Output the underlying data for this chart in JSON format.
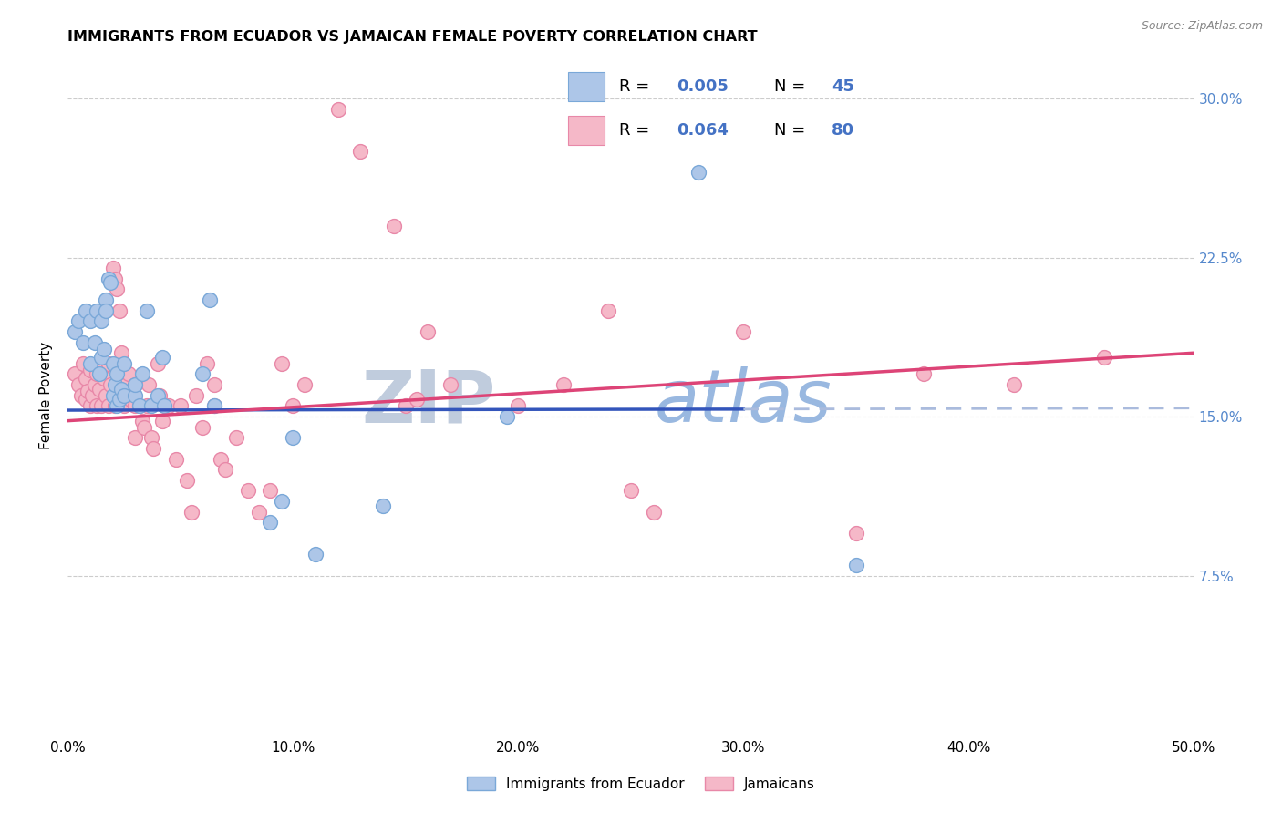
{
  "title": "IMMIGRANTS FROM ECUADOR VS JAMAICAN FEMALE POVERTY CORRELATION CHART",
  "source": "Source: ZipAtlas.com",
  "ylabel": "Female Poverty",
  "right_yticks": [
    "30.0%",
    "22.5%",
    "15.0%",
    "7.5%"
  ],
  "right_ytick_vals": [
    0.3,
    0.225,
    0.15,
    0.075
  ],
  "blue_scatter": [
    [
      0.003,
      0.19
    ],
    [
      0.005,
      0.195
    ],
    [
      0.007,
      0.185
    ],
    [
      0.008,
      0.2
    ],
    [
      0.01,
      0.175
    ],
    [
      0.01,
      0.195
    ],
    [
      0.012,
      0.185
    ],
    [
      0.013,
      0.2
    ],
    [
      0.014,
      0.17
    ],
    [
      0.015,
      0.178
    ],
    [
      0.015,
      0.195
    ],
    [
      0.016,
      0.182
    ],
    [
      0.017,
      0.205
    ],
    [
      0.017,
      0.2
    ],
    [
      0.018,
      0.215
    ],
    [
      0.019,
      0.213
    ],
    [
      0.02,
      0.16
    ],
    [
      0.02,
      0.175
    ],
    [
      0.021,
      0.165
    ],
    [
      0.022,
      0.155
    ],
    [
      0.022,
      0.17
    ],
    [
      0.023,
      0.158
    ],
    [
      0.024,
      0.163
    ],
    [
      0.025,
      0.175
    ],
    [
      0.025,
      0.16
    ],
    [
      0.03,
      0.16
    ],
    [
      0.03,
      0.165
    ],
    [
      0.032,
      0.155
    ],
    [
      0.033,
      0.17
    ],
    [
      0.035,
      0.2
    ],
    [
      0.037,
      0.155
    ],
    [
      0.04,
      0.16
    ],
    [
      0.042,
      0.178
    ],
    [
      0.043,
      0.155
    ],
    [
      0.06,
      0.17
    ],
    [
      0.063,
      0.205
    ],
    [
      0.065,
      0.155
    ],
    [
      0.09,
      0.1
    ],
    [
      0.095,
      0.11
    ],
    [
      0.1,
      0.14
    ],
    [
      0.11,
      0.085
    ],
    [
      0.14,
      0.108
    ],
    [
      0.195,
      0.15
    ],
    [
      0.28,
      0.265
    ],
    [
      0.35,
      0.08
    ]
  ],
  "pink_scatter": [
    [
      0.003,
      0.17
    ],
    [
      0.005,
      0.165
    ],
    [
      0.006,
      0.16
    ],
    [
      0.007,
      0.175
    ],
    [
      0.008,
      0.168
    ],
    [
      0.008,
      0.158
    ],
    [
      0.009,
      0.162
    ],
    [
      0.01,
      0.172
    ],
    [
      0.01,
      0.155
    ],
    [
      0.011,
      0.16
    ],
    [
      0.012,
      0.165
    ],
    [
      0.013,
      0.155
    ],
    [
      0.013,
      0.17
    ],
    [
      0.014,
      0.163
    ],
    [
      0.015,
      0.175
    ],
    [
      0.015,
      0.155
    ],
    [
      0.016,
      0.168
    ],
    [
      0.017,
      0.16
    ],
    [
      0.018,
      0.175
    ],
    [
      0.018,
      0.155
    ],
    [
      0.019,
      0.165
    ],
    [
      0.02,
      0.22
    ],
    [
      0.021,
      0.215
    ],
    [
      0.021,
      0.155
    ],
    [
      0.022,
      0.21
    ],
    [
      0.023,
      0.2
    ],
    [
      0.024,
      0.18
    ],
    [
      0.025,
      0.155
    ],
    [
      0.026,
      0.165
    ],
    [
      0.027,
      0.17
    ],
    [
      0.028,
      0.158
    ],
    [
      0.03,
      0.155
    ],
    [
      0.03,
      0.165
    ],
    [
      0.03,
      0.14
    ],
    [
      0.032,
      0.155
    ],
    [
      0.033,
      0.148
    ],
    [
      0.034,
      0.145
    ],
    [
      0.035,
      0.155
    ],
    [
      0.036,
      0.165
    ],
    [
      0.037,
      0.14
    ],
    [
      0.038,
      0.135
    ],
    [
      0.04,
      0.175
    ],
    [
      0.041,
      0.16
    ],
    [
      0.042,
      0.148
    ],
    [
      0.045,
      0.155
    ],
    [
      0.048,
      0.13
    ],
    [
      0.05,
      0.155
    ],
    [
      0.053,
      0.12
    ],
    [
      0.055,
      0.105
    ],
    [
      0.057,
      0.16
    ],
    [
      0.06,
      0.145
    ],
    [
      0.062,
      0.175
    ],
    [
      0.065,
      0.165
    ],
    [
      0.065,
      0.155
    ],
    [
      0.068,
      0.13
    ],
    [
      0.07,
      0.125
    ],
    [
      0.075,
      0.14
    ],
    [
      0.08,
      0.115
    ],
    [
      0.085,
      0.105
    ],
    [
      0.09,
      0.115
    ],
    [
      0.095,
      0.175
    ],
    [
      0.1,
      0.155
    ],
    [
      0.105,
      0.165
    ],
    [
      0.12,
      0.295
    ],
    [
      0.13,
      0.275
    ],
    [
      0.145,
      0.24
    ],
    [
      0.15,
      0.155
    ],
    [
      0.155,
      0.158
    ],
    [
      0.16,
      0.19
    ],
    [
      0.17,
      0.165
    ],
    [
      0.2,
      0.155
    ],
    [
      0.22,
      0.165
    ],
    [
      0.24,
      0.2
    ],
    [
      0.25,
      0.115
    ],
    [
      0.26,
      0.105
    ],
    [
      0.3,
      0.19
    ],
    [
      0.35,
      0.095
    ],
    [
      0.38,
      0.17
    ],
    [
      0.42,
      0.165
    ],
    [
      0.46,
      0.178
    ]
  ],
  "blue_line_solid": {
    "x": [
      0.0,
      0.3
    ],
    "y": [
      0.153,
      0.1535
    ]
  },
  "blue_line_dashed": {
    "x": [
      0.3,
      0.5
    ],
    "y": [
      0.1535,
      0.154
    ]
  },
  "pink_line": {
    "x": [
      0.0,
      0.5
    ],
    "y": [
      0.148,
      0.18
    ]
  },
  "xlim": [
    0.0,
    0.5
  ],
  "ylim": [
    0.0,
    0.32
  ],
  "grid_color": "#cccccc",
  "scatter_color_blue": "#adc6e8",
  "scatter_edge_blue": "#7aa8d8",
  "scatter_color_pink": "#f5b8c8",
  "scatter_edge_pink": "#e888a8",
  "line_color_blue": "#3355bb",
  "line_color_pink": "#dd4477",
  "line_color_blue_dashed": "#aabbdd",
  "watermark_zip_color": "#c0ccdd",
  "watermark_atlas_color": "#99b8e0",
  "legend_r_n_color": "#000000",
  "legend_val_color": "#4472c4",
  "legend_r1": "0.005",
  "legend_n1": "45",
  "legend_r2": "0.064",
  "legend_n2": "80"
}
